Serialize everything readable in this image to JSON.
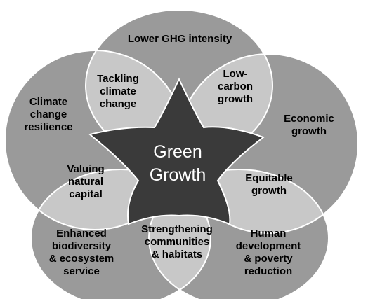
{
  "colors": {
    "background": "#ffffff",
    "outer_circle": "#9a9a9a",
    "overlap": "#c8c8c8",
    "star": "#3a3a3a",
    "outline": "#ffffff"
  },
  "center": {
    "line1": "Green",
    "line2": "Growth"
  },
  "outer": {
    "top": {
      "line1": "Lower GHG intensity"
    },
    "right": {
      "line1": "Economic",
      "line2": "growth"
    },
    "bottom_right": {
      "line1": "Human",
      "line2": "development",
      "line3": "& poverty",
      "line4": "reduction"
    },
    "bottom_left": {
      "line1": "Enhanced",
      "line2": "biodiversity",
      "line3": "& ecosystem",
      "line4": "service"
    },
    "left": {
      "line1": "Climate",
      "line2": "change",
      "line3": "resilience"
    }
  },
  "overlaps": {
    "top_left": {
      "line1": "Tackling",
      "line2": "climate",
      "line3": "change"
    },
    "top_right": {
      "line1": "Low-",
      "line2": "carbon",
      "line3": "growth"
    },
    "right": {
      "line1": "Equitable",
      "line2": "growth"
    },
    "bottom": {
      "line1": "Strengthening",
      "line2": "communities",
      "line3": "& habitats"
    },
    "left": {
      "line1": "Valuing",
      "line2": "natural",
      "line3": "capital"
    }
  }
}
